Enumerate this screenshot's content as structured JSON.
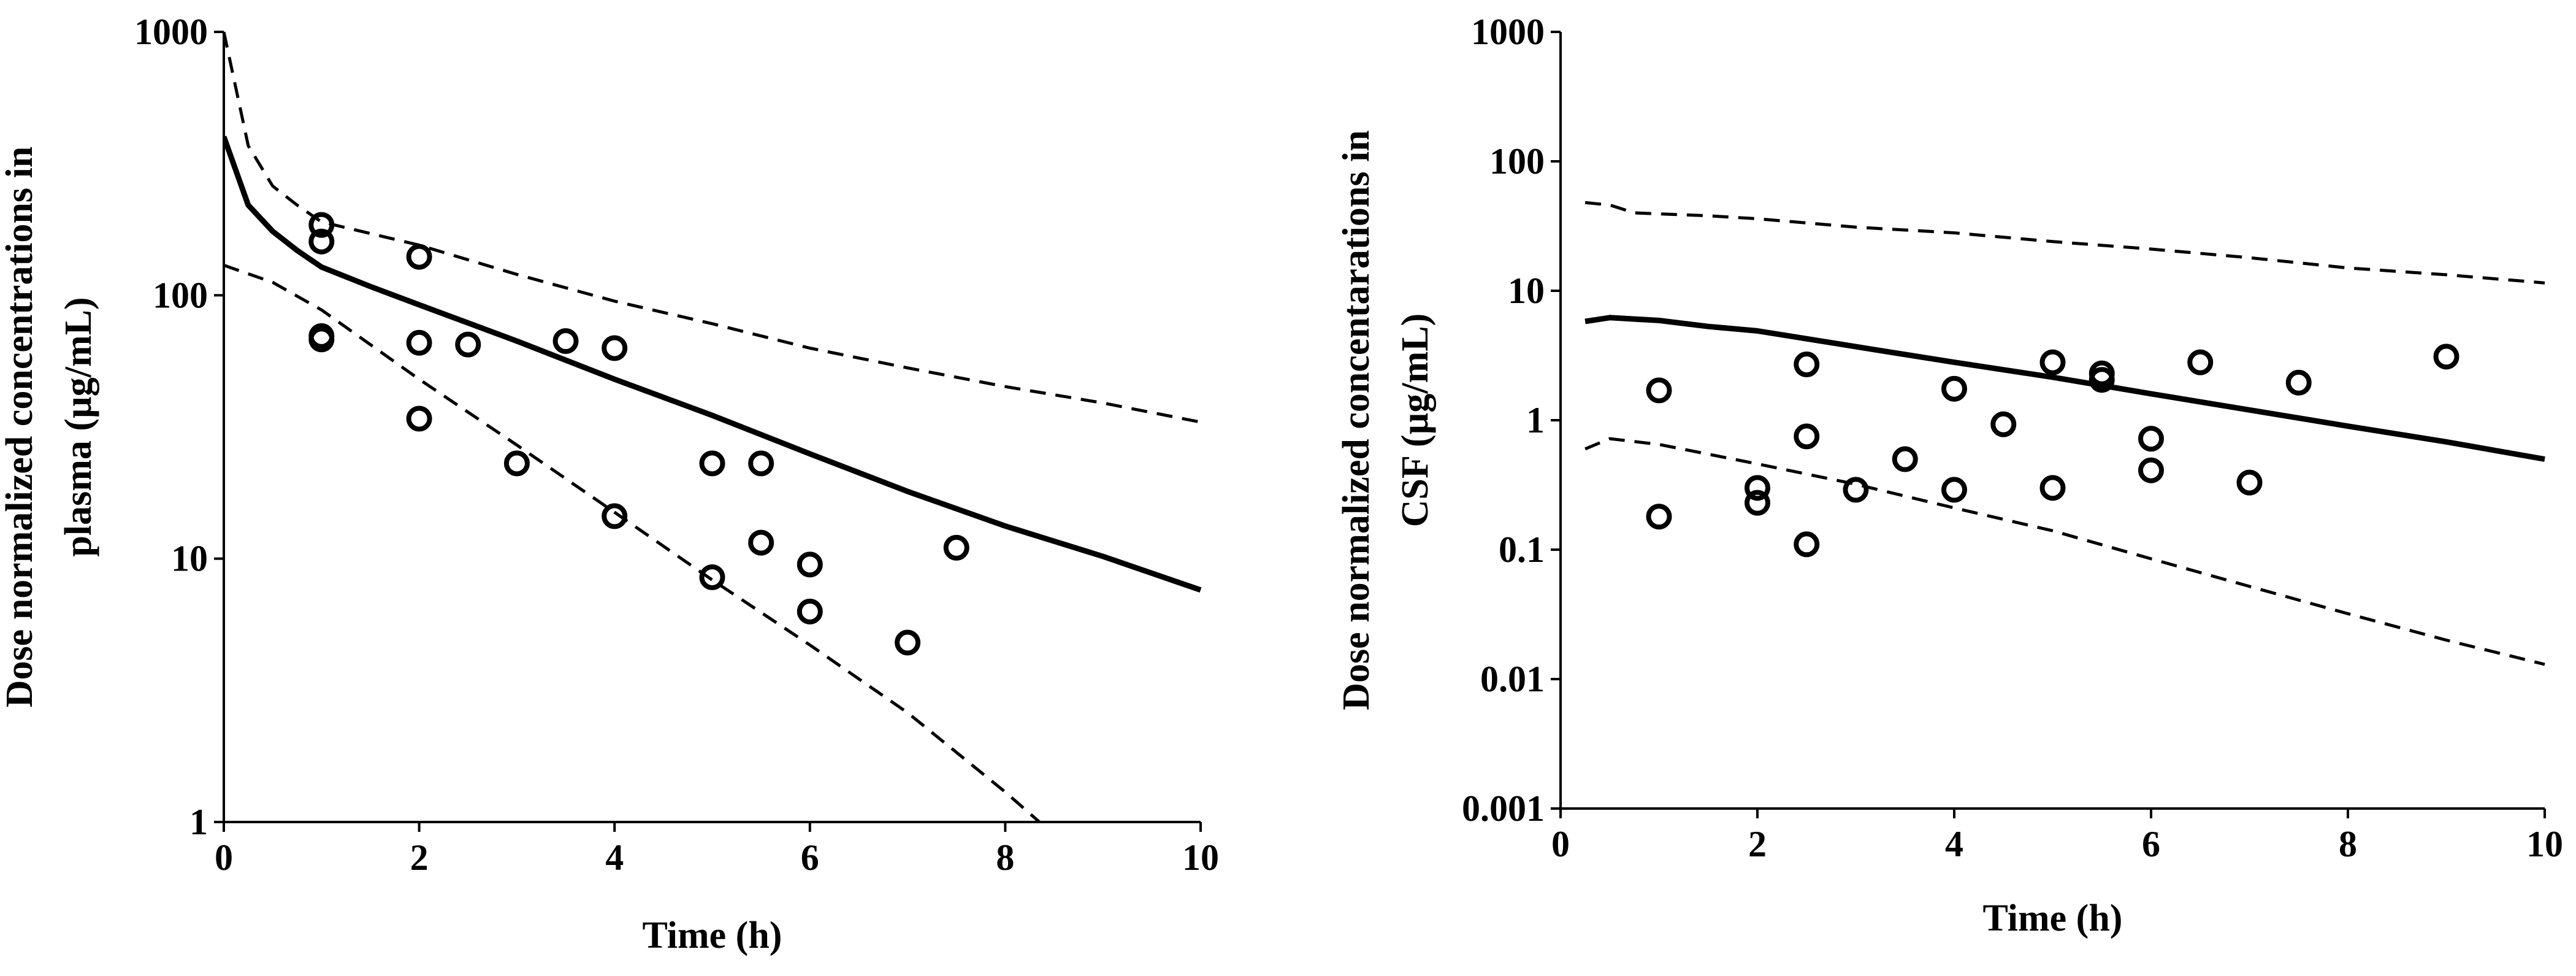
{
  "chart_data": [
    {
      "type": "scatter",
      "name": "plasma",
      "title": "",
      "xlabel": "Time (h)",
      "ylabel_lines": [
        "Dose normalized concentrations in",
        "plasma (µg/mL)"
      ],
      "yscale": "log",
      "xlim": [
        0,
        10
      ],
      "ylim": [
        1,
        1000
      ],
      "xticks": [
        0,
        2,
        4,
        6,
        8,
        10
      ],
      "xtick_labels": [
        "0",
        "2",
        "4",
        "6",
        "8",
        "10"
      ],
      "yticks": [
        1,
        10,
        100,
        1000
      ],
      "ytick_labels": [
        "1",
        "10",
        "100",
        "1000"
      ],
      "grid": false,
      "series": [
        {
          "name": "observed",
          "style": "marker-open-circle",
          "points": [
            [
              1,
              185
            ],
            [
              1,
              160
            ],
            [
              1,
              70
            ],
            [
              1,
              68
            ],
            [
              2,
              140
            ],
            [
              2,
              66
            ],
            [
              2,
              34
            ],
            [
              2.5,
              65
            ],
            [
              3,
              23
            ],
            [
              3.5,
              67
            ],
            [
              4,
              63
            ],
            [
              4,
              14.5
            ],
            [
              5,
              23
            ],
            [
              5,
              8.5
            ],
            [
              5.5,
              23
            ],
            [
              5.5,
              11.5
            ],
            [
              6,
              9.5
            ],
            [
              6,
              6.3
            ],
            [
              7,
              4.8
            ],
            [
              7.5,
              11
            ]
          ]
        },
        {
          "name": "median-prediction",
          "style": "solid",
          "points": [
            [
              0,
              400
            ],
            [
              0.25,
              220
            ],
            [
              0.5,
              175
            ],
            [
              0.75,
              148
            ],
            [
              1,
              128
            ],
            [
              1.5,
              108
            ],
            [
              2,
              92
            ],
            [
              3,
              67
            ],
            [
              4,
              48
            ],
            [
              5,
              35
            ],
            [
              6,
              25
            ],
            [
              7,
              18
            ],
            [
              8,
              13.3
            ],
            [
              9,
              10.2
            ],
            [
              10,
              7.6
            ]
          ]
        },
        {
          "name": "upper-prediction-bound",
          "style": "dashed",
          "points": [
            [
              0,
              1000
            ],
            [
              0.25,
              370
            ],
            [
              0.5,
              260
            ],
            [
              0.75,
              220
            ],
            [
              1,
              190
            ],
            [
              2,
              155
            ],
            [
              3,
              120
            ],
            [
              4,
              95
            ],
            [
              5,
              78
            ],
            [
              6,
              63
            ],
            [
              7,
              53
            ],
            [
              8,
              45
            ],
            [
              9,
              39
            ],
            [
              10,
              33
            ]
          ]
        },
        {
          "name": "lower-prediction-bound",
          "style": "dashed",
          "points": [
            [
              0,
              130
            ],
            [
              0.5,
              112
            ],
            [
              1,
              88
            ],
            [
              2,
              48
            ],
            [
              3,
              27
            ],
            [
              4,
              15
            ],
            [
              5,
              8.3
            ],
            [
              6,
              4.7
            ],
            [
              7,
              2.6
            ],
            [
              8,
              1.3
            ],
            [
              8.35,
              1
            ]
          ]
        }
      ]
    },
    {
      "type": "scatter",
      "name": "csf",
      "title": "",
      "xlabel": "Time (h)",
      "ylabel_lines": [
        "Dose normalized  concentarations in",
        "CSF (µg/mL)"
      ],
      "yscale": "log",
      "xlim": [
        0,
        10
      ],
      "ylim": [
        0.001,
        1000
      ],
      "xticks": [
        0,
        2,
        4,
        6,
        8,
        10
      ],
      "xtick_labels": [
        "0",
        "2",
        "4",
        "6",
        "8",
        "10"
      ],
      "yticks": [
        0.001,
        0.01,
        0.1,
        1,
        10,
        100,
        1000
      ],
      "ytick_labels": [
        "0.001",
        "0.01",
        "0.1",
        "1",
        "10",
        "100",
        "1000"
      ],
      "grid": false,
      "series": [
        {
          "name": "observed",
          "style": "marker-open-circle",
          "points": [
            [
              1,
              1.7
            ],
            [
              1,
              0.18
            ],
            [
              2,
              0.3
            ],
            [
              2,
              0.23
            ],
            [
              2.5,
              2.7
            ],
            [
              2.5,
              0.75
            ],
            [
              2.5,
              0.11
            ],
            [
              3,
              0.29
            ],
            [
              3.5,
              0.5
            ],
            [
              4,
              1.75
            ],
            [
              4,
              0.29
            ],
            [
              4.5,
              0.93
            ],
            [
              5,
              2.8
            ],
            [
              5,
              0.3
            ],
            [
              5.5,
              2.3
            ],
            [
              5.5,
              2.05
            ],
            [
              6,
              0.72
            ],
            [
              6,
              0.41
            ],
            [
              6.5,
              2.8
            ],
            [
              7,
              0.33
            ],
            [
              7.5,
              1.95
            ],
            [
              9,
              3.1
            ]
          ]
        },
        {
          "name": "median-prediction",
          "style": "solid",
          "points": [
            [
              0.25,
              5.8
            ],
            [
              0.5,
              6.2
            ],
            [
              1,
              5.9
            ],
            [
              1.5,
              5.3
            ],
            [
              2,
              4.9
            ],
            [
              3,
              3.7
            ],
            [
              4,
              2.8
            ],
            [
              5,
              2.15
            ],
            [
              6,
              1.6
            ],
            [
              7,
              1.2
            ],
            [
              8,
              0.9
            ],
            [
              9,
              0.68
            ],
            [
              10,
              0.5
            ]
          ]
        },
        {
          "name": "upper-prediction-bound",
          "style": "dashed",
          "points": [
            [
              0.25,
              48
            ],
            [
              0.5,
              46
            ],
            [
              0.75,
              40
            ],
            [
              1.5,
              38
            ],
            [
              2,
              36
            ],
            [
              3,
              31
            ],
            [
              4,
              28
            ],
            [
              5,
              24
            ],
            [
              6,
              21
            ],
            [
              7,
              18
            ],
            [
              8,
              15
            ],
            [
              9,
              13.3
            ],
            [
              10,
              11.5
            ]
          ]
        },
        {
          "name": "lower-prediction-bound",
          "style": "dashed",
          "points": [
            [
              0.25,
              0.6
            ],
            [
              0.5,
              0.72
            ],
            [
              1,
              0.65
            ],
            [
              2,
              0.46
            ],
            [
              3,
              0.32
            ],
            [
              4,
              0.21
            ],
            [
              5,
              0.14
            ],
            [
              6,
              0.085
            ],
            [
              7,
              0.052
            ],
            [
              8,
              0.032
            ],
            [
              9,
              0.02
            ],
            [
              10,
              0.013
            ]
          ]
        }
      ]
    }
  ]
}
